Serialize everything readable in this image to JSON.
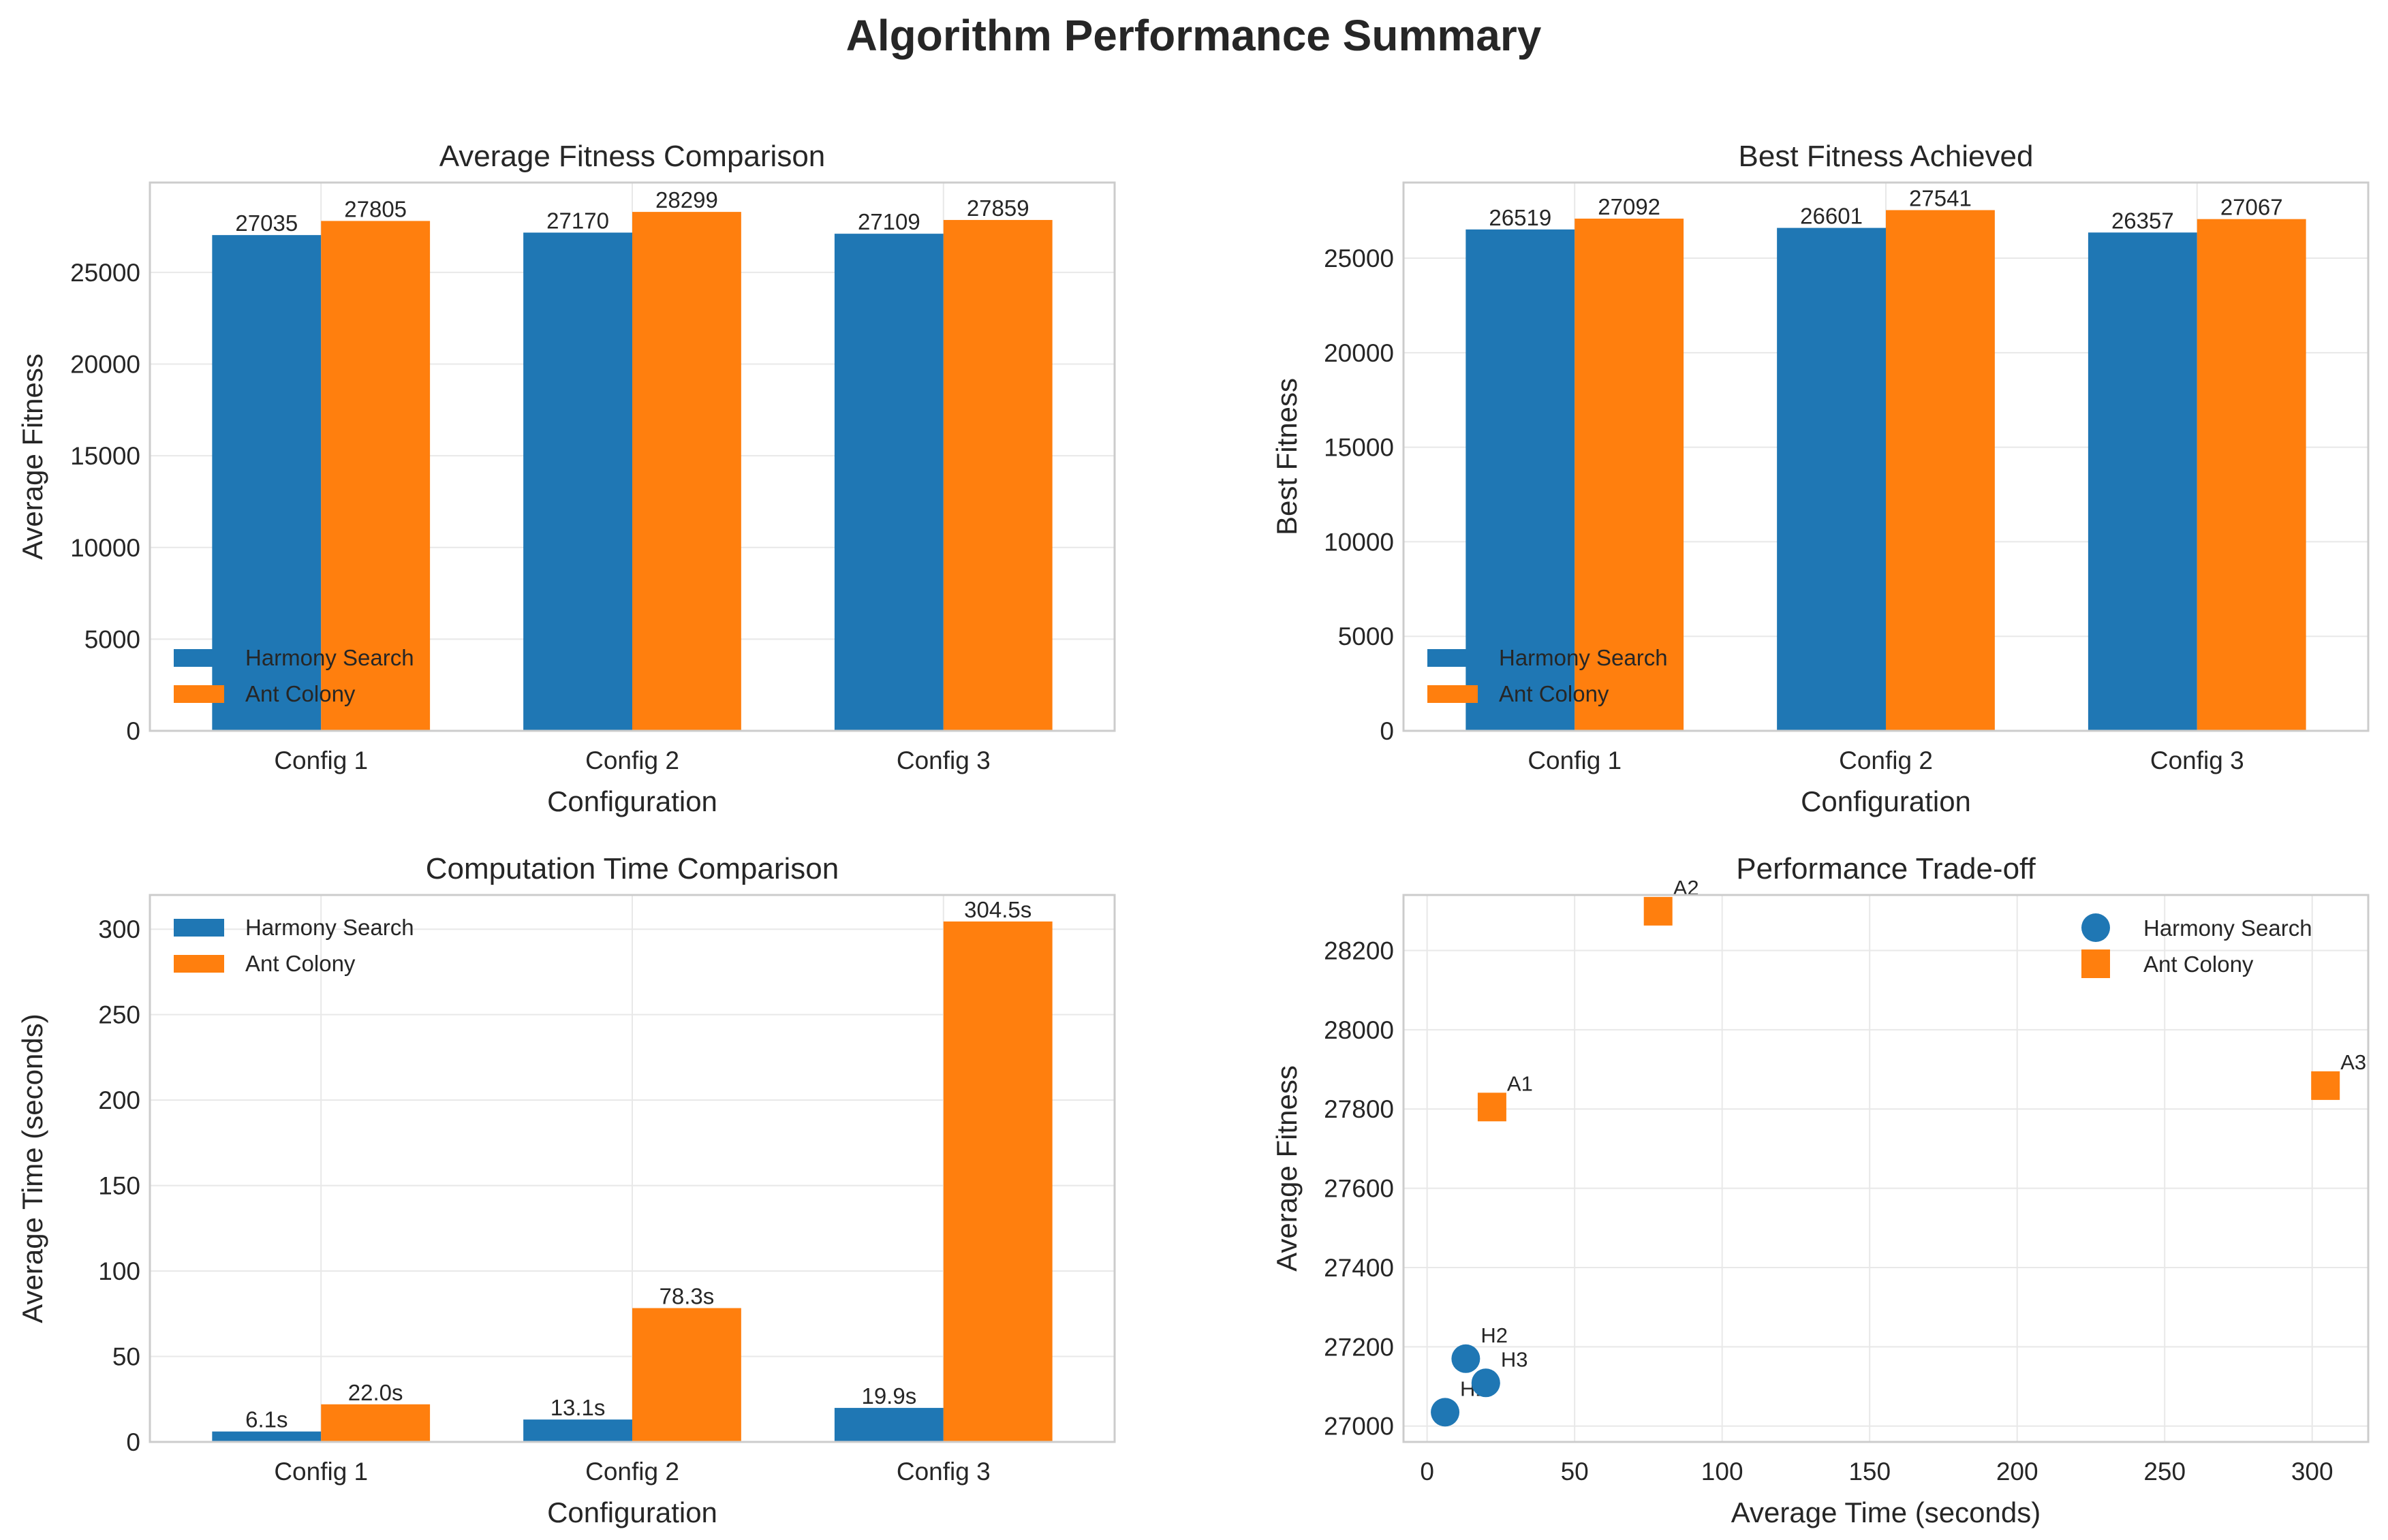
{
  "figure": {
    "title": "Algorithm Performance Summary"
  },
  "colors": {
    "harmony": "#1f77b4",
    "ant": "#ff7f0e",
    "grid": "#e8e8e8",
    "spine": "#cccccc"
  },
  "chart_data": [
    {
      "id": "avg_fitness",
      "type": "bar",
      "title": "Average Fitness Comparison",
      "xlabel": "Configuration",
      "ylabel": "Average Fitness",
      "categories": [
        "Config 1",
        "Config 2",
        "Config 3"
      ],
      "ylim": [
        0,
        29900
      ],
      "yticks": [
        0,
        5000,
        10000,
        15000,
        20000,
        25000
      ],
      "label_format": "int",
      "legend_position": "lower left",
      "series": [
        {
          "name": "Harmony Search",
          "values": [
            27035,
            27170,
            27109
          ]
        },
        {
          "name": "Ant Colony",
          "values": [
            27805,
            28299,
            27859
          ]
        }
      ]
    },
    {
      "id": "best_fitness",
      "type": "bar",
      "title": "Best Fitness Achieved",
      "xlabel": "Configuration",
      "ylabel": "Best Fitness",
      "categories": [
        "Config 1",
        "Config 2",
        "Config 3"
      ],
      "ylim": [
        0,
        29000
      ],
      "yticks": [
        0,
        5000,
        10000,
        15000,
        20000,
        25000
      ],
      "label_format": "int",
      "legend_position": "lower left",
      "series": [
        {
          "name": "Harmony Search",
          "values": [
            26519,
            26601,
            26357
          ]
        },
        {
          "name": "Ant Colony",
          "values": [
            27092,
            27541,
            27067
          ]
        }
      ]
    },
    {
      "id": "time",
      "type": "bar",
      "title": "Computation Time Comparison",
      "xlabel": "Configuration",
      "ylabel": "Average Time (seconds)",
      "categories": [
        "Config 1",
        "Config 2",
        "Config 3"
      ],
      "ylim": [
        0,
        320
      ],
      "yticks": [
        0,
        50,
        100,
        150,
        200,
        250,
        300
      ],
      "label_format": "seconds",
      "legend_position": "upper left",
      "series": [
        {
          "name": "Harmony Search",
          "values": [
            6.1,
            13.1,
            19.9
          ]
        },
        {
          "name": "Ant Colony",
          "values": [
            22.0,
            78.3,
            304.5
          ]
        }
      ]
    },
    {
      "id": "tradeoff",
      "type": "scatter",
      "title": "Performance Trade-off",
      "xlabel": "Average Time (seconds)",
      "ylabel": "Average Fitness",
      "xlim": [
        -8,
        319
      ],
      "ylim": [
        26960,
        28340
      ],
      "xticks": [
        0,
        50,
        100,
        150,
        200,
        250,
        300
      ],
      "yticks": [
        27000,
        27200,
        27400,
        27600,
        27800,
        28000,
        28200
      ],
      "legend_position": "upper right",
      "series": [
        {
          "name": "Harmony Search",
          "marker": "circle",
          "points": [
            {
              "label": "H1",
              "x": 6.1,
              "y": 27035
            },
            {
              "label": "H2",
              "x": 13.1,
              "y": 27170
            },
            {
              "label": "H3",
              "x": 19.9,
              "y": 27109
            }
          ]
        },
        {
          "name": "Ant Colony",
          "marker": "square",
          "points": [
            {
              "label": "A1",
              "x": 22.0,
              "y": 27805
            },
            {
              "label": "A2",
              "x": 78.3,
              "y": 28299
            },
            {
              "label": "A3",
              "x": 304.5,
              "y": 27859
            }
          ]
        }
      ]
    }
  ]
}
